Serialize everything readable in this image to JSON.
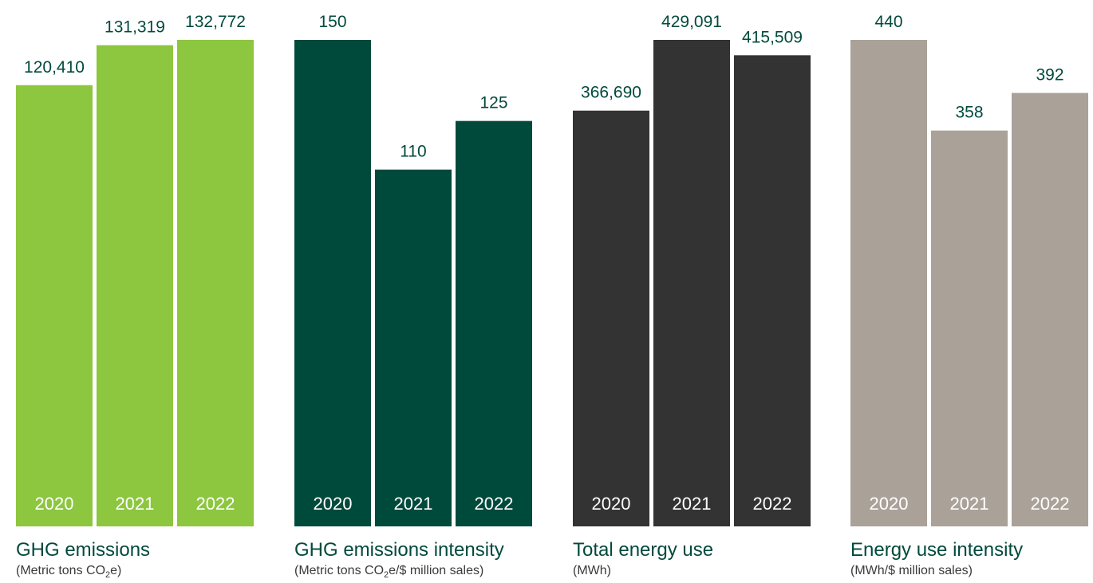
{
  "chart_data": [
    {
      "type": "bar",
      "categories": [
        "2020",
        "2021",
        "2022"
      ],
      "values": [
        120410,
        131319,
        132772
      ],
      "value_labels": [
        "120,410",
        "131,319",
        "132,772"
      ],
      "title": "GHG emissions",
      "subtitle": {
        "before": "(Metric tons CO",
        "sub": "2",
        "after": "e)"
      },
      "bar_color": "#8dc63f"
    },
    {
      "type": "bar",
      "categories": [
        "2020",
        "2021",
        "2022"
      ],
      "values": [
        150,
        110,
        125
      ],
      "value_labels": [
        "150",
        "110",
        "125"
      ],
      "title": "GHG emissions intensity",
      "subtitle": {
        "before": "(Metric tons CO",
        "sub": "2",
        "after": "e/$ million sales)"
      },
      "bar_color": "#004a3c"
    },
    {
      "type": "bar",
      "categories": [
        "2020",
        "2021",
        "2022"
      ],
      "values": [
        366690,
        429091,
        415509
      ],
      "value_labels": [
        "366,690",
        "429,091",
        "415,509"
      ],
      "title": "Total energy use",
      "subtitle": {
        "before": "(MWh)",
        "sub": "",
        "after": ""
      },
      "bar_color": "#333333"
    },
    {
      "type": "bar",
      "categories": [
        "2020",
        "2021",
        "2022"
      ],
      "values": [
        440,
        358,
        392
      ],
      "value_labels": [
        "440",
        "358",
        "392"
      ],
      "title": "Energy use intensity",
      "subtitle": {
        "before": "(MWh/$ million sales)",
        "sub": "",
        "after": ""
      },
      "bar_color": "#aaa198"
    }
  ],
  "colors": {
    "value_label": "#014a3c",
    "year_label": "#ffffff",
    "title": "#014a3c",
    "subtitle": "#3a3a3a"
  }
}
